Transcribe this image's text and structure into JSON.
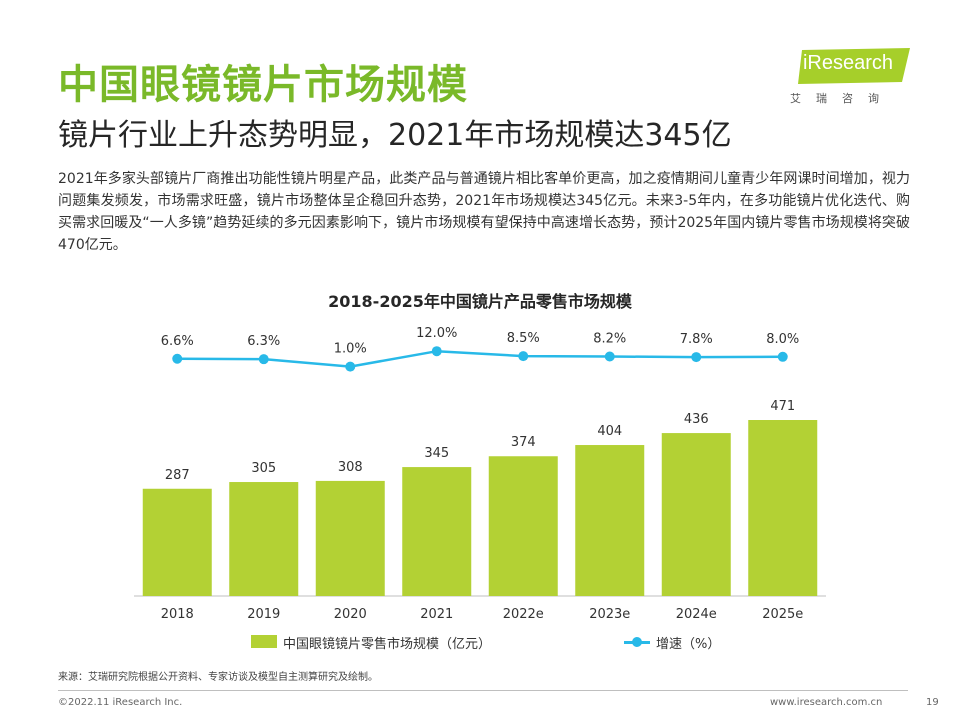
{
  "page": {
    "title": "中国眼镜镜片市场规模",
    "subtitle": "镜片行业上升态势明显，2021年市场规模达345亿",
    "body": "2021年多家头部镜片厂商推出功能性镜片明星产品，此类产品与普通镜片相比客单价更高，加之疫情期间儿童青少年网课时间增加，视力问题集发频发，市场需求旺盛，镜片市场整体呈企稳回升态势，2021年市场规模达345亿元。未来3-5年内，在多功能镜片优化迭代、购买需求回暖及“一人多镜”趋势延续的多元因素影响下，镜片市场规模有望保持中高速增长态势，预计2025年国内镜片零售市场规模将突破470亿元。"
  },
  "logo": {
    "text": "iResearch",
    "cn": "艾瑞咨询"
  },
  "chart_data": {
    "type": "bar",
    "title": "2018-2025年中国镜片产品零售市场规模",
    "categories": [
      "2018",
      "2019",
      "2020",
      "2021",
      "2022e",
      "2023e",
      "2024e",
      "2025e"
    ],
    "series": [
      {
        "name": "中国眼镜镜片零售市场规模（亿元）",
        "type": "bar",
        "values": [
          287,
          305,
          308,
          345,
          374,
          404,
          436,
          471
        ],
        "labels": [
          "287",
          "305",
          "308",
          "345",
          "374",
          "404",
          "436",
          "471"
        ],
        "color": "#b3d134"
      },
      {
        "name": "增速（%）",
        "type": "line",
        "values": [
          6.6,
          6.3,
          1.0,
          12.0,
          8.5,
          8.2,
          7.8,
          8.0
        ],
        "labels": [
          "6.6%",
          "6.3%",
          "1.0%",
          "12.0%",
          "8.5%",
          "8.2%",
          "7.8%",
          "8.0%"
        ],
        "color": "#28b9e8"
      }
    ],
    "legend_position": "bottom",
    "grid": false
  },
  "footer": {
    "source": "来源：艾瑞研究院根据公开资料、专家访谈及模型自主测算研究及绘制。",
    "copyright": "©2022.11 iResearch Inc.",
    "website": "www.iresearch.com.cn",
    "page_number": "19"
  }
}
